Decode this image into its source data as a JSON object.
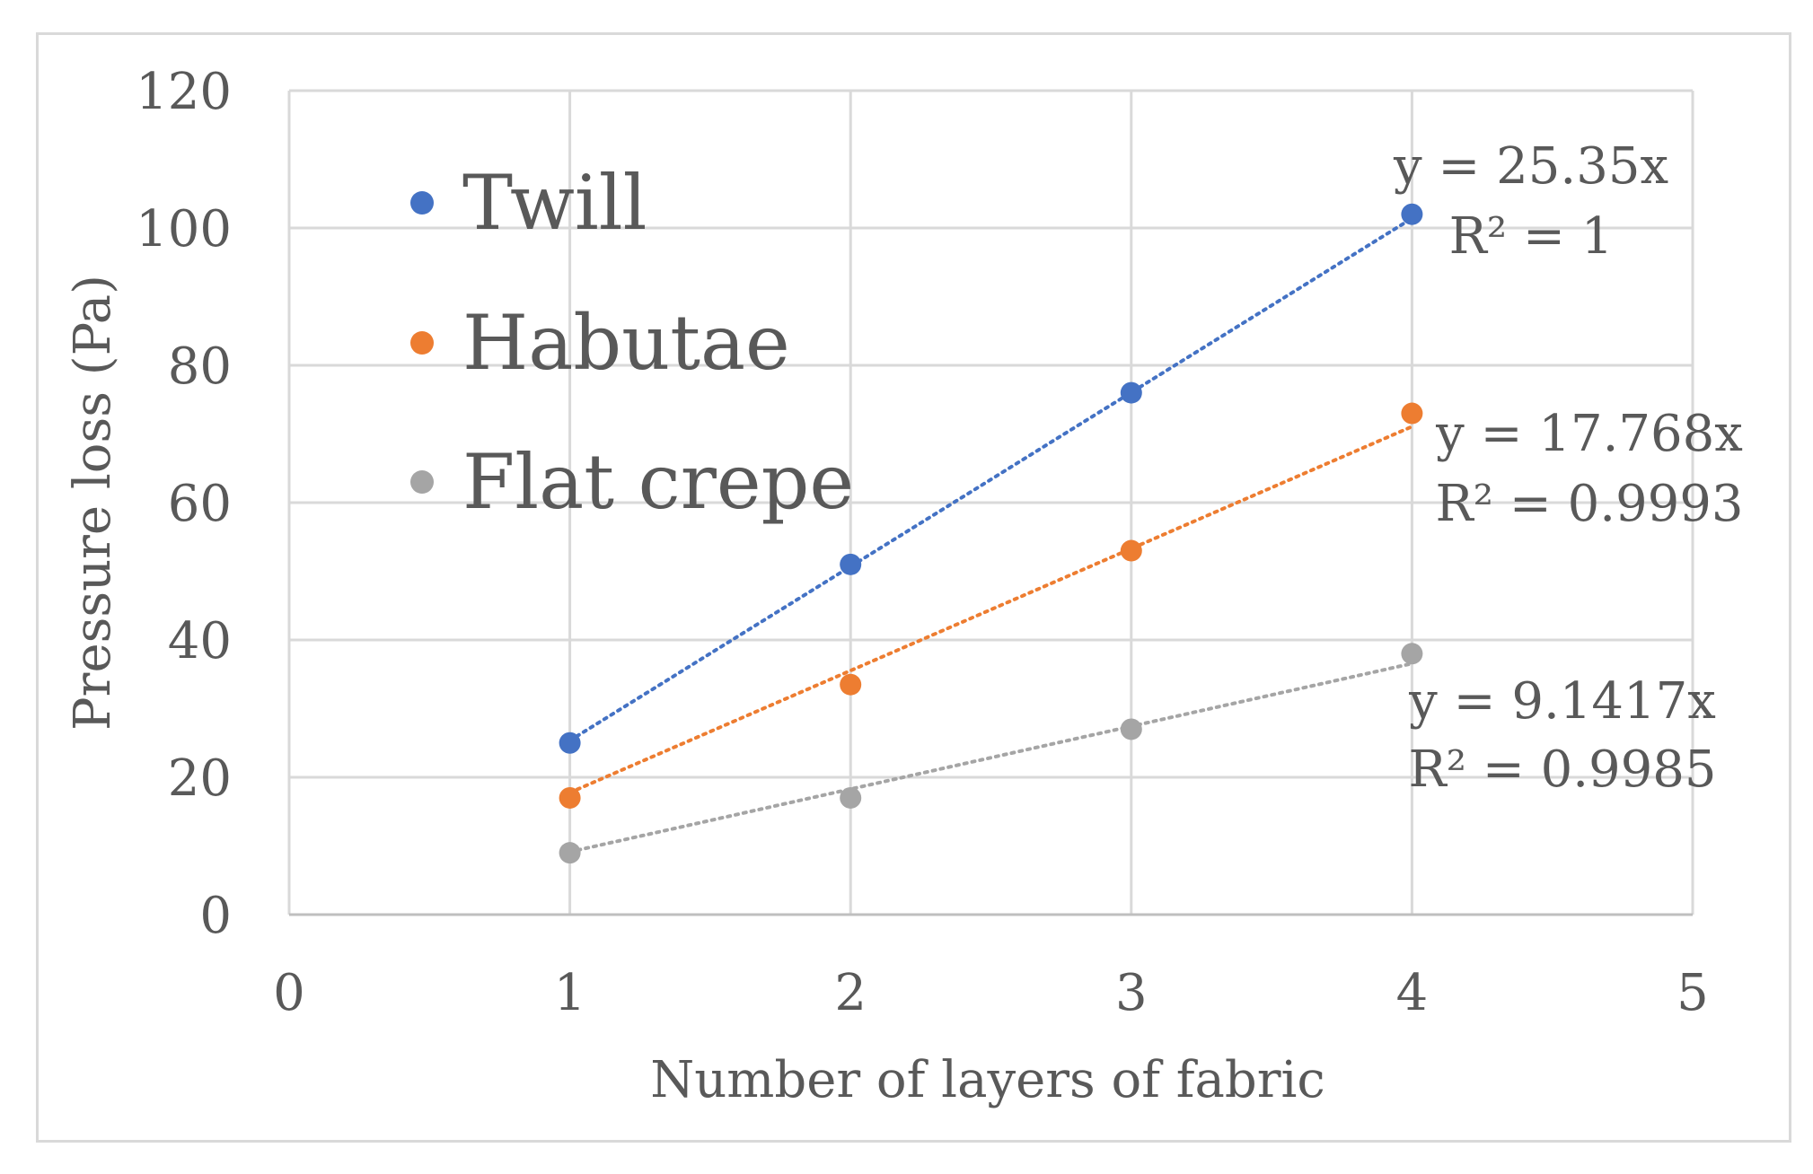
{
  "chart_data": {
    "type": "scatter",
    "title": "",
    "xlabel": "Number of layers of fabric",
    "ylabel": "Pressure loss (Pa)",
    "xlim": [
      0,
      5
    ],
    "ylim": [
      0,
      120
    ],
    "x_ticks": [
      "0",
      "1",
      "2",
      "3",
      "4",
      "5"
    ],
    "y_ticks": [
      "0",
      "20",
      "40",
      "60",
      "80",
      "100",
      "120"
    ],
    "grid": true,
    "legend_position": "top-left",
    "trendline": "linear, dotted",
    "series": [
      {
        "name": "Twill",
        "color": "#4472c4",
        "x": [
          1,
          2,
          3,
          4
        ],
        "y": [
          25,
          51,
          76,
          102
        ],
        "trend_slope": 25.35,
        "equation": "y = 25.35x",
        "r_squared": "R² = 1"
      },
      {
        "name": "Habutae",
        "color": "#ed7d31",
        "x": [
          1,
          2,
          3,
          4
        ],
        "y": [
          17,
          33.5,
          53,
          73
        ],
        "trend_slope": 17.768,
        "equation": "y = 17.768x",
        "r_squared": "R² = 0.9993"
      },
      {
        "name": "Flat crepe",
        "color": "#a5a5a5",
        "x": [
          1,
          2,
          3,
          4
        ],
        "y": [
          9,
          17,
          27,
          38
        ],
        "trend_slope": 9.1417,
        "equation": "y = 9.1417x",
        "r_squared": "R² = 0.9985"
      }
    ]
  }
}
